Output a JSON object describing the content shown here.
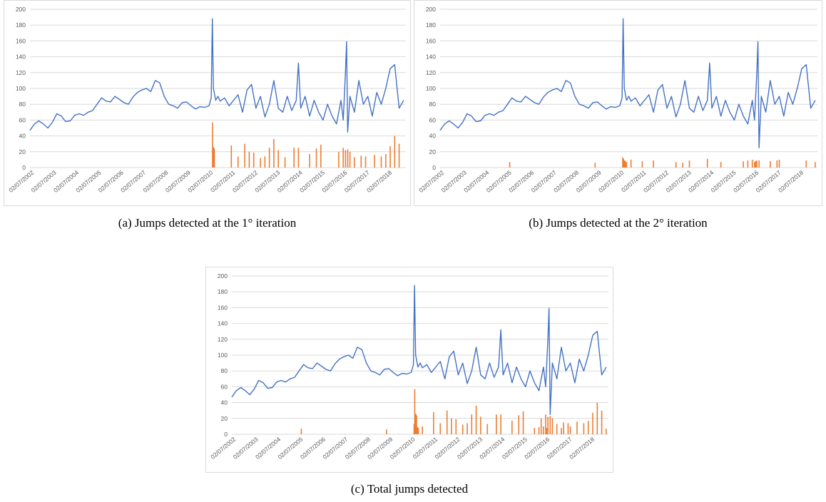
{
  "colors": {
    "price_line": "#4472c4",
    "jump_bars": "#ed7d31",
    "grid": "#d9d9d9",
    "axis_text": "#595959"
  },
  "chart_data": [
    {
      "type": "bar",
      "caption": "(a) Jumps detected at the 1° iteration",
      "xlabel": "",
      "ylabel": "",
      "ylim": [
        0,
        200
      ],
      "yticks": [
        0,
        20,
        40,
        60,
        80,
        100,
        120,
        140,
        160,
        180,
        200
      ],
      "grid": true,
      "legend": "none",
      "xticks": [
        "02/07/2002",
        "02/07/2003",
        "02/07/2004",
        "02/07/2005",
        "02/07/2006",
        "02/07/2007",
        "02/07/2008",
        "02/07/2009",
        "02/07/2010",
        "02/07/2011",
        "02/07/2012",
        "02/07/2013",
        "02/07/2014",
        "02/07/2015",
        "02/07/2016",
        "02/07/2017",
        "02/07/2018"
      ],
      "x_start_year": 2002.5,
      "x_end_year": 2019.3,
      "line": {
        "x": [
          2002.5,
          2002.7,
          2002.9,
          2003.1,
          2003.3,
          2003.5,
          2003.7,
          2003.9,
          2004.1,
          2004.3,
          2004.5,
          2004.7,
          2004.9,
          2005.1,
          2005.3,
          2005.5,
          2005.7,
          2005.9,
          2006.1,
          2006.3,
          2006.5,
          2006.7,
          2006.9,
          2007.1,
          2007.3,
          2007.5,
          2007.7,
          2007.9,
          2008.1,
          2008.3,
          2008.5,
          2008.7,
          2008.9,
          2009.1,
          2009.3,
          2009.5,
          2009.7,
          2009.9,
          2010.1,
          2010.3,
          2010.5,
          2010.6,
          2010.65,
          2010.7,
          2010.8,
          2010.9,
          2011.0,
          2011.2,
          2011.4,
          2011.6,
          2011.8,
          2012.0,
          2012.2,
          2012.4,
          2012.6,
          2012.8,
          2013.0,
          2013.2,
          2013.4,
          2013.6,
          2013.8,
          2014.0,
          2014.2,
          2014.4,
          2014.5,
          2014.6,
          2014.8,
          2015.0,
          2015.2,
          2015.4,
          2015.6,
          2015.8,
          2016.0,
          2016.2,
          2016.4,
          2016.5,
          2016.6,
          2016.65,
          2016.7,
          2016.8,
          2017.0,
          2017.2,
          2017.4,
          2017.6,
          2017.8,
          2018.0,
          2018.2,
          2018.4,
          2018.6,
          2018.8,
          2019.0,
          2019.2
        ],
        "y": [
          47,
          55,
          59,
          55,
          50,
          57,
          68,
          65,
          58,
          59,
          66,
          68,
          66,
          70,
          72,
          80,
          88,
          84,
          83,
          90,
          86,
          82,
          80,
          89,
          95,
          98,
          100,
          96,
          110,
          107,
          90,
          80,
          78,
          75,
          82,
          83,
          78,
          74,
          77,
          76,
          78,
          88,
          188,
          100,
          85,
          90,
          84,
          88,
          78,
          85,
          92,
          70,
          98,
          105,
          75,
          90,
          64,
          80,
          110,
          75,
          70,
          90,
          72,
          85,
          132,
          75,
          90,
          65,
          85,
          70,
          60,
          80,
          65,
          55,
          85,
          60,
          120,
          159,
          45,
          90,
          70,
          110,
          80,
          90,
          65,
          95,
          80,
          100,
          125,
          130,
          75,
          85
        ]
      },
      "bars": {
        "x": [
          2010.66,
          2010.7,
          2010.74,
          2011.5,
          2011.8,
          2012.1,
          2012.3,
          2012.5,
          2012.8,
          2013.0,
          2013.2,
          2013.4,
          2013.6,
          2013.9,
          2014.3,
          2014.5,
          2015.0,
          2015.3,
          2015.5,
          2016.3,
          2016.5,
          2016.6,
          2016.7,
          2016.8,
          2017.0,
          2017.3,
          2017.5,
          2017.9,
          2018.2,
          2018.4,
          2018.6,
          2018.8,
          2019.0
        ],
        "y": [
          57,
          26,
          24,
          28,
          14,
          30,
          20,
          19,
          12,
          14,
          25,
          36,
          22,
          13,
          25,
          25,
          17,
          24,
          29,
          20,
          25,
          22,
          23,
          20,
          13,
          15,
          14,
          16,
          14,
          17,
          27,
          40,
          30
        ]
      }
    },
    {
      "type": "bar",
      "caption": "(b) Jumps detected at the 2° iteration",
      "xlabel": "",
      "ylabel": "",
      "ylim": [
        0,
        200
      ],
      "yticks": [
        0,
        20,
        40,
        60,
        80,
        100,
        120,
        140,
        160,
        180,
        200
      ],
      "grid": true,
      "legend": "none",
      "xticks": [
        "02/07/2002",
        "02/07/2003",
        "02/07/2004",
        "02/07/2005",
        "02/07/2006",
        "02/07/2007",
        "02/07/2008",
        "02/07/2009",
        "02/07/2010",
        "02/07/2011",
        "02/07/2012",
        "02/07/2013",
        "02/07/2014",
        "02/07/2015",
        "02/07/2016",
        "02/07/2017",
        "02/07/2018"
      ],
      "x_start_year": 2002.5,
      "x_end_year": 2019.3,
      "line": {
        "x": [
          2002.5,
          2002.7,
          2002.9,
          2003.1,
          2003.3,
          2003.5,
          2003.7,
          2003.9,
          2004.1,
          2004.3,
          2004.5,
          2004.7,
          2004.9,
          2005.1,
          2005.3,
          2005.5,
          2005.7,
          2005.9,
          2006.1,
          2006.3,
          2006.5,
          2006.7,
          2006.9,
          2007.1,
          2007.3,
          2007.5,
          2007.7,
          2007.9,
          2008.1,
          2008.3,
          2008.5,
          2008.7,
          2008.9,
          2009.1,
          2009.3,
          2009.5,
          2009.7,
          2009.9,
          2010.1,
          2010.3,
          2010.5,
          2010.6,
          2010.65,
          2010.7,
          2010.8,
          2010.9,
          2011.0,
          2011.2,
          2011.4,
          2011.6,
          2011.8,
          2012.0,
          2012.2,
          2012.4,
          2012.6,
          2012.8,
          2013.0,
          2013.2,
          2013.4,
          2013.6,
          2013.8,
          2014.0,
          2014.2,
          2014.4,
          2014.5,
          2014.6,
          2014.8,
          2015.0,
          2015.2,
          2015.4,
          2015.6,
          2015.8,
          2016.0,
          2016.2,
          2016.4,
          2016.5,
          2016.6,
          2016.65,
          2016.7,
          2016.8,
          2017.0,
          2017.2,
          2017.4,
          2017.6,
          2017.8,
          2018.0,
          2018.2,
          2018.4,
          2018.6,
          2018.8,
          2019.0,
          2019.2
        ],
        "y": [
          47,
          55,
          59,
          55,
          50,
          57,
          68,
          65,
          58,
          59,
          66,
          68,
          66,
          70,
          72,
          80,
          88,
          84,
          83,
          90,
          86,
          82,
          80,
          89,
          95,
          98,
          100,
          96,
          110,
          107,
          90,
          80,
          78,
          75,
          82,
          83,
          78,
          74,
          77,
          76,
          78,
          88,
          188,
          100,
          85,
          90,
          84,
          88,
          78,
          85,
          92,
          70,
          98,
          105,
          75,
          90,
          64,
          80,
          110,
          75,
          70,
          90,
          72,
          85,
          132,
          75,
          90,
          65,
          85,
          70,
          60,
          80,
          65,
          55,
          85,
          60,
          120,
          159,
          25,
          90,
          70,
          110,
          80,
          90,
          65,
          95,
          80,
          100,
          125,
          130,
          75,
          85
        ]
      },
      "bars": {
        "x": [
          2005.6,
          2009.4,
          2010.63,
          2010.67,
          2010.71,
          2010.75,
          2010.8,
          2011.0,
          2011.5,
          2012.0,
          2013.0,
          2013.3,
          2013.6,
          2014.4,
          2015.0,
          2016.0,
          2016.2,
          2016.4,
          2016.5,
          2016.55,
          2016.6,
          2016.7,
          2017.2,
          2017.5,
          2017.6,
          2018.8,
          2019.2
        ],
        "y": [
          7,
          6,
          13,
          11,
          9,
          8,
          7,
          10,
          8,
          9,
          7,
          6,
          9,
          11,
          7,
          8,
          9,
          10,
          7,
          8,
          9,
          9,
          8,
          9,
          10,
          9,
          7
        ]
      }
    },
    {
      "type": "bar",
      "caption": "(c) Total jumps detected",
      "xlabel": "",
      "ylabel": "",
      "ylim": [
        0,
        200
      ],
      "yticks": [
        0,
        20,
        40,
        60,
        80,
        100,
        120,
        140,
        160,
        180,
        200
      ],
      "grid": true,
      "legend": "none",
      "xticks": [
        "02/07/2002",
        "02/07/2003",
        "02/07/2004",
        "02/07/2005",
        "02/07/2006",
        "02/07/2007",
        "02/07/2008",
        "02/07/2009",
        "02/07/2010",
        "02/07/2011",
        "02/07/2012",
        "02/07/2013",
        "02/07/2014",
        "02/07/2015",
        "02/07/2016",
        "02/07/2017",
        "02/07/2018"
      ],
      "x_start_year": 2002.5,
      "x_end_year": 2019.3,
      "line": {
        "x": [
          2002.5,
          2002.7,
          2002.9,
          2003.1,
          2003.3,
          2003.5,
          2003.7,
          2003.9,
          2004.1,
          2004.3,
          2004.5,
          2004.7,
          2004.9,
          2005.1,
          2005.3,
          2005.5,
          2005.7,
          2005.9,
          2006.1,
          2006.3,
          2006.5,
          2006.7,
          2006.9,
          2007.1,
          2007.3,
          2007.5,
          2007.7,
          2007.9,
          2008.1,
          2008.3,
          2008.5,
          2008.7,
          2008.9,
          2009.1,
          2009.3,
          2009.5,
          2009.7,
          2009.9,
          2010.1,
          2010.3,
          2010.5,
          2010.6,
          2010.65,
          2010.7,
          2010.8,
          2010.9,
          2011.0,
          2011.2,
          2011.4,
          2011.6,
          2011.8,
          2012.0,
          2012.2,
          2012.4,
          2012.6,
          2012.8,
          2013.0,
          2013.2,
          2013.4,
          2013.6,
          2013.8,
          2014.0,
          2014.2,
          2014.4,
          2014.5,
          2014.6,
          2014.8,
          2015.0,
          2015.2,
          2015.4,
          2015.6,
          2015.8,
          2016.0,
          2016.2,
          2016.4,
          2016.5,
          2016.6,
          2016.65,
          2016.7,
          2016.8,
          2017.0,
          2017.2,
          2017.4,
          2017.6,
          2017.8,
          2018.0,
          2018.2,
          2018.4,
          2018.6,
          2018.8,
          2019.0,
          2019.2
        ],
        "y": [
          47,
          55,
          59,
          55,
          50,
          57,
          68,
          65,
          58,
          59,
          66,
          68,
          66,
          70,
          72,
          80,
          88,
          84,
          83,
          90,
          86,
          82,
          80,
          89,
          95,
          98,
          100,
          96,
          110,
          107,
          90,
          80,
          78,
          75,
          82,
          83,
          78,
          74,
          77,
          76,
          78,
          88,
          188,
          100,
          85,
          90,
          84,
          88,
          78,
          85,
          92,
          70,
          98,
          105,
          75,
          90,
          64,
          80,
          110,
          75,
          70,
          90,
          72,
          85,
          132,
          75,
          90,
          65,
          85,
          70,
          60,
          80,
          65,
          55,
          85,
          60,
          120,
          159,
          25,
          90,
          70,
          110,
          80,
          90,
          65,
          95,
          80,
          100,
          125,
          130,
          75,
          85
        ]
      },
      "bars": {
        "x": [
          2005.6,
          2009.4,
          2010.63,
          2010.66,
          2010.7,
          2010.74,
          2010.78,
          2010.82,
          2011.0,
          2011.5,
          2011.8,
          2012.1,
          2012.3,
          2012.5,
          2012.8,
          2013.0,
          2013.2,
          2013.4,
          2013.6,
          2013.9,
          2014.3,
          2014.5,
          2015.0,
          2015.3,
          2015.5,
          2016.0,
          2016.2,
          2016.3,
          2016.4,
          2016.5,
          2016.55,
          2016.6,
          2016.7,
          2016.8,
          2017.0,
          2017.2,
          2017.3,
          2017.5,
          2017.6,
          2017.9,
          2018.2,
          2018.4,
          2018.6,
          2018.8,
          2019.0,
          2019.2
        ],
        "y": [
          7,
          6,
          13,
          57,
          26,
          24,
          9,
          8,
          10,
          28,
          14,
          30,
          20,
          19,
          12,
          14,
          25,
          36,
          22,
          13,
          25,
          25,
          17,
          24,
          29,
          8,
          9,
          20,
          10,
          25,
          8,
          22,
          23,
          20,
          13,
          8,
          15,
          14,
          10,
          16,
          14,
          17,
          27,
          40,
          30,
          7
        ]
      }
    }
  ]
}
